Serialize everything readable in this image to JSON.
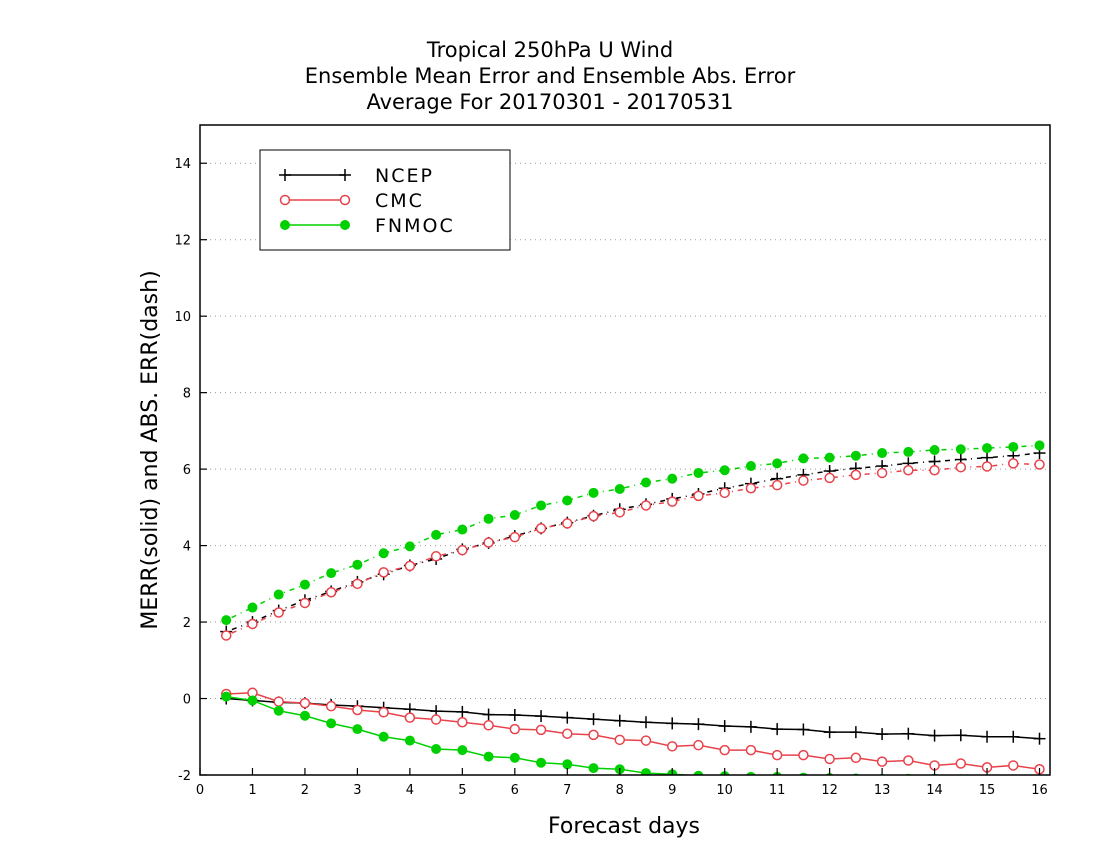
{
  "chart_data": {
    "type": "line",
    "title": [
      "Tropical 250hPa U Wind",
      "Ensemble Mean Error and Ensemble Abs. Error",
      "Average For 20170301 - 20170531"
    ],
    "xlabel": "Forecast days",
    "ylabel": "MERR(solid) and ABS. ERR(dash)",
    "xlim": [
      0,
      16.2
    ],
    "ylim": [
      -2,
      15
    ],
    "xticks": [
      "0",
      "1",
      "2",
      "3",
      "4",
      "5",
      "6",
      "7",
      "8",
      "9",
      "10",
      "11",
      "12",
      "13",
      "14",
      "15",
      "16"
    ],
    "yticks": [
      "-2",
      "0",
      "2",
      "4",
      "6",
      "8",
      "10",
      "12",
      "14"
    ],
    "grid": "horizontal dotted",
    "legend_position": "top-left",
    "x": [
      0.5,
      1,
      1.5,
      2,
      2.5,
      3,
      3.5,
      4,
      4.5,
      5,
      5.5,
      6,
      6.5,
      7,
      7.5,
      8,
      8.5,
      9,
      9.5,
      10,
      10.5,
      11,
      11.5,
      12,
      12.5,
      13,
      13.5,
      14,
      14.5,
      15,
      15.5,
      16
    ],
    "series": [
      {
        "name": "NCEP",
        "color": "#000000",
        "marker": "plus",
        "merr": [
          0.0,
          -0.05,
          -0.1,
          -0.12,
          -0.17,
          -0.2,
          -0.24,
          -0.28,
          -0.33,
          -0.35,
          -0.42,
          -0.43,
          -0.46,
          -0.5,
          -0.54,
          -0.58,
          -0.62,
          -0.65,
          -0.67,
          -0.72,
          -0.74,
          -0.8,
          -0.81,
          -0.88,
          -0.88,
          -0.93,
          -0.92,
          -0.97,
          -0.96,
          -1.0,
          -1.0,
          -1.05
        ],
        "abs_err": [
          1.75,
          2.0,
          2.3,
          2.57,
          2.8,
          3.05,
          3.25,
          3.48,
          3.65,
          3.9,
          4.07,
          4.25,
          4.45,
          4.6,
          4.78,
          4.95,
          5.08,
          5.22,
          5.35,
          5.5,
          5.62,
          5.75,
          5.85,
          5.95,
          6.02,
          6.08,
          6.15,
          6.2,
          6.25,
          6.3,
          6.35,
          6.42
        ]
      },
      {
        "name": "CMC",
        "color": "#e8424b",
        "marker": "open-circle",
        "merr": [
          0.12,
          0.15,
          -0.08,
          -0.12,
          -0.2,
          -0.3,
          -0.36,
          -0.5,
          -0.55,
          -0.62,
          -0.7,
          -0.8,
          -0.82,
          -0.92,
          -0.95,
          -1.08,
          -1.1,
          -1.25,
          -1.22,
          -1.35,
          -1.35,
          -1.48,
          -1.48,
          -1.58,
          -1.55,
          -1.65,
          -1.62,
          -1.75,
          -1.7,
          -1.8,
          -1.75,
          -1.85
        ],
        "abs_err": [
          1.65,
          1.95,
          2.25,
          2.5,
          2.78,
          3.0,
          3.3,
          3.47,
          3.72,
          3.88,
          4.08,
          4.22,
          4.45,
          4.58,
          4.77,
          4.87,
          5.05,
          5.15,
          5.3,
          5.38,
          5.5,
          5.58,
          5.7,
          5.77,
          5.85,
          5.9,
          5.97,
          5.97,
          6.05,
          6.07,
          6.15,
          6.12
        ]
      },
      {
        "name": "FNMOC",
        "color": "#00d000",
        "marker": "filled-circle",
        "merr": [
          0.05,
          -0.05,
          -0.32,
          -0.45,
          -0.65,
          -0.8,
          -1.0,
          -1.1,
          -1.32,
          -1.35,
          -1.52,
          -1.55,
          -1.68,
          -1.72,
          -1.82,
          -1.85,
          -1.95,
          -1.98,
          -2.02,
          -2.03,
          -2.05,
          -2.05,
          -2.07,
          -2.08,
          -2.09,
          -2.1,
          -2.1,
          -2.1,
          -2.11,
          -2.12,
          -2.12,
          -2.12
        ],
        "abs_err": [
          2.05,
          2.38,
          2.72,
          2.98,
          3.28,
          3.5,
          3.8,
          3.98,
          4.28,
          4.42,
          4.7,
          4.8,
          5.05,
          5.18,
          5.38,
          5.48,
          5.65,
          5.75,
          5.9,
          5.97,
          6.08,
          6.15,
          6.28,
          6.3,
          6.35,
          6.42,
          6.45,
          6.5,
          6.52,
          6.55,
          6.58,
          6.62
        ]
      }
    ]
  }
}
